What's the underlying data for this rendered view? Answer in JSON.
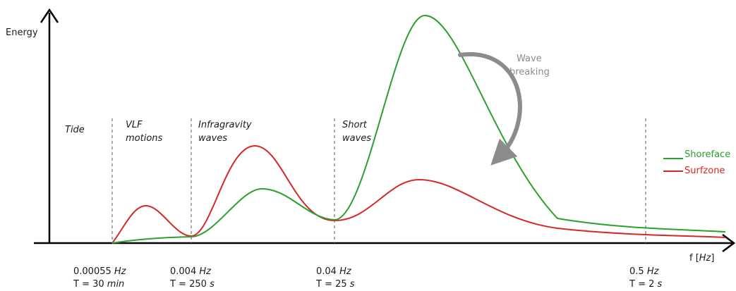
{
  "diagram": {
    "y_axis_label": "Energy",
    "x_axis_label": {
      "prefix": "f [",
      "unit": "Hz",
      "suffix": "]"
    },
    "bands": [
      {
        "line1": "Tide",
        "line2": ""
      },
      {
        "line1": "VLF",
        "line2": "motions"
      },
      {
        "line1": "Infragravity",
        "line2": "waves"
      },
      {
        "line1": "Short",
        "line2": "waves"
      }
    ],
    "ticks": [
      {
        "freq_value": "0.00055",
        "freq_unit": "Hz",
        "period_prefix": "T = 30",
        "period_unit": "min"
      },
      {
        "freq_value": "0.004",
        "freq_unit": "Hz",
        "period_prefix": "T = 250",
        "period_unit": "s"
      },
      {
        "freq_value": "0.04",
        "freq_unit": "Hz",
        "period_prefix": "T = 25",
        "period_unit": "s"
      },
      {
        "freq_value": "0.5",
        "freq_unit": "Hz",
        "period_prefix": "T = 2",
        "period_unit": "s"
      }
    ],
    "annotation": {
      "line1": "Wave",
      "line2": "breaking",
      "color": "#8c8c8c"
    },
    "legend": [
      {
        "name": "Shoreface",
        "color": "#2ca02c"
      },
      {
        "name": "Surfzone",
        "color": "#d62728"
      }
    ]
  }
}
